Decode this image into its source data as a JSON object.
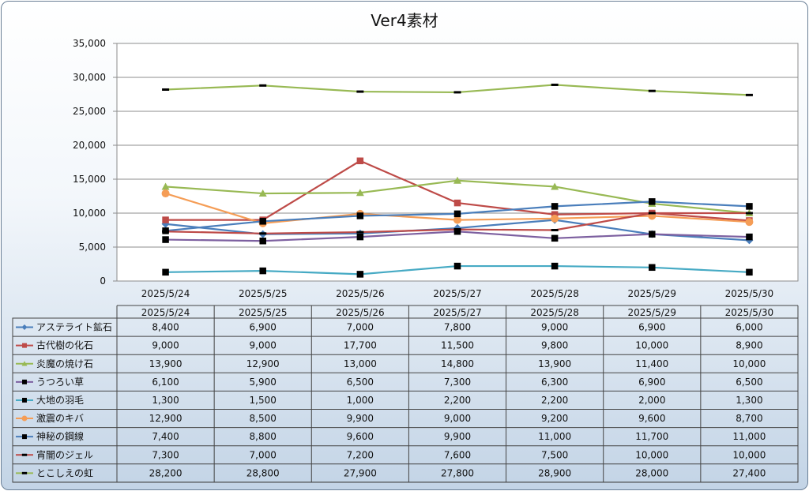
{
  "chart_data": {
    "type": "line",
    "title": "Ver4素材",
    "xlabel": "",
    "ylabel": "",
    "x": [
      "2025/5/24",
      "2025/5/25",
      "2025/5/26",
      "2025/5/27",
      "2025/5/28",
      "2025/5/29",
      "2025/5/30"
    ],
    "ylim": [
      0,
      35000
    ],
    "y_ticks": [
      "0",
      "5,000",
      "10,000",
      "15,000",
      "20,000",
      "25,000",
      "30,000",
      "35,000"
    ],
    "grid": true,
    "legend": "data-table-below",
    "series": [
      {
        "name": "アステライト鉱石",
        "values": [
          8400,
          6900,
          7000,
          7800,
          9000,
          6900,
          6000
        ],
        "value_labels": [
          "8,400",
          "6,900",
          "7,000",
          "7,800",
          "9,000",
          "6,900",
          "6,000"
        ],
        "color": "#4a7ebb",
        "marker": "diamond"
      },
      {
        "name": "古代樹の化石",
        "values": [
          9000,
          9000,
          17700,
          11500,
          9800,
          10000,
          8900
        ],
        "value_labels": [
          "9,000",
          "9,000",
          "17,700",
          "11,500",
          "9,800",
          "10,000",
          "8,900"
        ],
        "color": "#be4b48",
        "marker": "square"
      },
      {
        "name": "炎魔の焼け石",
        "values": [
          13900,
          12900,
          13000,
          14800,
          13900,
          11400,
          10000
        ],
        "value_labels": [
          "13,900",
          "12,900",
          "13,000",
          "14,800",
          "13,900",
          "11,400",
          "10,000"
        ],
        "color": "#98b954",
        "marker": "triangle"
      },
      {
        "name": "うつろい草",
        "values": [
          6100,
          5900,
          6500,
          7300,
          6300,
          6900,
          6500
        ],
        "value_labels": [
          "6,100",
          "5,900",
          "6,500",
          "7,300",
          "6,300",
          "6,900",
          "6,500"
        ],
        "color": "#7d60a0",
        "marker": "square-black"
      },
      {
        "name": "大地の羽毛",
        "values": [
          1300,
          1500,
          1000,
          2200,
          2200,
          2000,
          1300
        ],
        "value_labels": [
          "1,300",
          "1,500",
          "1,000",
          "2,200",
          "2,200",
          "2,000",
          "1,300"
        ],
        "color": "#46aac4",
        "marker": "square-black"
      },
      {
        "name": "激震のキバ",
        "values": [
          12900,
          8500,
          9900,
          9000,
          9200,
          9600,
          8700
        ],
        "value_labels": [
          "12,900",
          "8,500",
          "9,900",
          "9,000",
          "9,200",
          "9,600",
          "8,700"
        ],
        "color": "#f59d56",
        "marker": "circle"
      },
      {
        "name": "神秘の鋼線",
        "values": [
          7400,
          8800,
          9600,
          9900,
          11000,
          11700,
          11000
        ],
        "value_labels": [
          "7,400",
          "8,800",
          "9,600",
          "9,900",
          "11,000",
          "11,700",
          "11,000"
        ],
        "color": "#4a7ebb",
        "marker": "square-black"
      },
      {
        "name": "宵闇のジェル",
        "values": [
          7300,
          7000,
          7200,
          7600,
          7500,
          10000,
          10000
        ],
        "value_labels": [
          "7,300",
          "7,000",
          "7,200",
          "7,600",
          "7,500",
          "10,000",
          "10,000"
        ],
        "color": "#be4b48",
        "marker": "dash"
      },
      {
        "name": "とこしえの虹",
        "values": [
          28200,
          28800,
          27900,
          27800,
          28900,
          28000,
          27400
        ],
        "value_labels": [
          "28,200",
          "28,800",
          "27,900",
          "27,800",
          "28,900",
          "28,000",
          "27,400"
        ],
        "color": "#98b954",
        "marker": "dash"
      }
    ]
  }
}
